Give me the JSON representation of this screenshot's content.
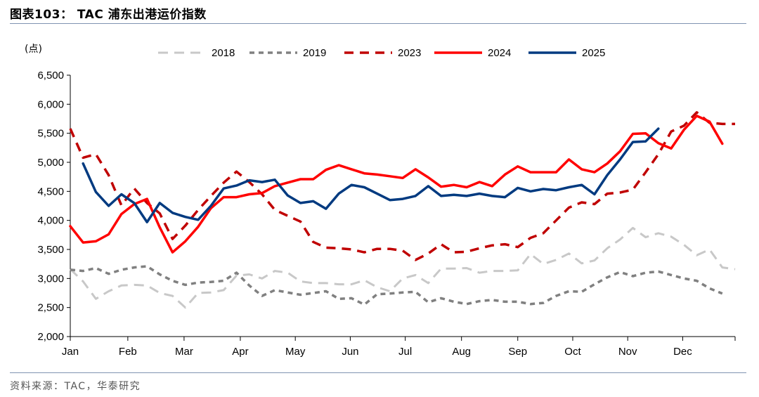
{
  "figure": {
    "title": "图表103： TAC 浦东出港运价指数",
    "source": "资料来源：TAC，华泰研究"
  },
  "chart_data": {
    "type": "line",
    "title": "",
    "ylabel": "(点)",
    "xlabel": "",
    "ylim": [
      2000,
      6500
    ],
    "yticks": [
      2000,
      2500,
      3000,
      3500,
      4000,
      4500,
      5000,
      5500,
      6000,
      6500
    ],
    "ytick_labels": [
      "2,000",
      "2,500",
      "3,000",
      "3,500",
      "4,000",
      "4,500",
      "5,000",
      "5,500",
      "6,000",
      "6,500"
    ],
    "x_unit": "week of year",
    "xlim": [
      1,
      53
    ],
    "months": [
      {
        "label": "Jan",
        "week": 1
      },
      {
        "label": "Feb",
        "week": 5.5
      },
      {
        "label": "Mar",
        "week": 9.9
      },
      {
        "label": "Apr",
        "week": 14.3
      },
      {
        "label": "May",
        "week": 18.6
      },
      {
        "label": "Jun",
        "week": 22.9
      },
      {
        "label": "Jul",
        "week": 27.2
      },
      {
        "label": "Aug",
        "week": 31.6
      },
      {
        "label": "Sep",
        "week": 36.0
      },
      {
        "label": "Oct",
        "week": 40.3
      },
      {
        "label": "Nov",
        "week": 44.6
      },
      {
        "label": "Dec",
        "week": 48.9
      }
    ],
    "legend_position": "top",
    "grid": false,
    "series": [
      {
        "name": "2018",
        "color": "#c8c8c8",
        "dash": "14,9",
        "width": 3,
        "points": [
          [
            1,
            3160
          ],
          [
            2,
            2950
          ],
          [
            3,
            2650
          ],
          [
            4,
            2780
          ],
          [
            5,
            2880
          ],
          [
            6,
            2890
          ],
          [
            7,
            2880
          ],
          [
            8,
            2750
          ],
          [
            9,
            2700
          ],
          [
            10,
            2500
          ],
          [
            11,
            2750
          ],
          [
            12,
            2760
          ],
          [
            13,
            2800
          ],
          [
            14,
            3050
          ],
          [
            15,
            3070
          ],
          [
            16,
            3000
          ],
          [
            17,
            3130
          ],
          [
            18,
            3100
          ],
          [
            19,
            2950
          ],
          [
            20,
            2920
          ],
          [
            21,
            2920
          ],
          [
            22,
            2900
          ],
          [
            23,
            2900
          ],
          [
            24,
            2970
          ],
          [
            25,
            2850
          ],
          [
            26,
            2780
          ],
          [
            27,
            3000
          ],
          [
            28,
            3060
          ],
          [
            29,
            2920
          ],
          [
            30,
            3170
          ],
          [
            31,
            3170
          ],
          [
            32,
            3180
          ],
          [
            33,
            3100
          ],
          [
            34,
            3130
          ],
          [
            35,
            3130
          ],
          [
            36,
            3140
          ],
          [
            37,
            3420
          ],
          [
            38,
            3250
          ],
          [
            39,
            3320
          ],
          [
            40,
            3430
          ],
          [
            41,
            3260
          ],
          [
            42,
            3310
          ],
          [
            43,
            3520
          ],
          [
            44,
            3670
          ],
          [
            45,
            3870
          ],
          [
            46,
            3710
          ],
          [
            47,
            3780
          ],
          [
            48,
            3720
          ],
          [
            49,
            3580
          ],
          [
            50,
            3400
          ],
          [
            51,
            3500
          ],
          [
            52,
            3190
          ],
          [
            53,
            3160
          ]
        ]
      },
      {
        "name": "2019",
        "color": "#808080",
        "dash": "7,6",
        "width": 3.5,
        "points": [
          [
            1,
            3150
          ],
          [
            2,
            3130
          ],
          [
            3,
            3180
          ],
          [
            4,
            3080
          ],
          [
            5,
            3150
          ],
          [
            6,
            3190
          ],
          [
            7,
            3210
          ],
          [
            8,
            3070
          ],
          [
            9,
            2960
          ],
          [
            10,
            2890
          ],
          [
            11,
            2930
          ],
          [
            12,
            2940
          ],
          [
            13,
            2960
          ],
          [
            14,
            3100
          ],
          [
            15,
            2880
          ],
          [
            16,
            2700
          ],
          [
            17,
            2800
          ],
          [
            18,
            2760
          ],
          [
            19,
            2720
          ],
          [
            20,
            2750
          ],
          [
            21,
            2780
          ],
          [
            22,
            2650
          ],
          [
            23,
            2660
          ],
          [
            24,
            2550
          ],
          [
            25,
            2730
          ],
          [
            26,
            2740
          ],
          [
            27,
            2760
          ],
          [
            28,
            2770
          ],
          [
            29,
            2590
          ],
          [
            30,
            2660
          ],
          [
            31,
            2600
          ],
          [
            32,
            2560
          ],
          [
            33,
            2610
          ],
          [
            34,
            2630
          ],
          [
            35,
            2600
          ],
          [
            36,
            2600
          ],
          [
            37,
            2560
          ],
          [
            38,
            2580
          ],
          [
            39,
            2700
          ],
          [
            40,
            2780
          ],
          [
            41,
            2770
          ],
          [
            42,
            2900
          ],
          [
            43,
            3020
          ],
          [
            44,
            3110
          ],
          [
            45,
            3040
          ],
          [
            46,
            3100
          ],
          [
            47,
            3120
          ],
          [
            48,
            3060
          ],
          [
            49,
            3000
          ],
          [
            50,
            2960
          ],
          [
            51,
            2830
          ],
          [
            52,
            2740
          ]
        ]
      },
      {
        "name": "2023",
        "color": "#c00000",
        "dash": "13,9",
        "width": 3.5,
        "points": [
          [
            1,
            5580
          ],
          [
            2,
            5080
          ],
          [
            3,
            5140
          ],
          [
            4,
            4780
          ],
          [
            5,
            4260
          ],
          [
            6,
            4550
          ],
          [
            7,
            4300
          ],
          [
            8,
            4120
          ],
          [
            9,
            3680
          ],
          [
            10,
            3910
          ],
          [
            11,
            4180
          ],
          [
            12,
            4420
          ],
          [
            13,
            4650
          ],
          [
            14,
            4840
          ],
          [
            15,
            4660
          ],
          [
            16,
            4450
          ],
          [
            17,
            4180
          ],
          [
            18,
            4080
          ],
          [
            19,
            3980
          ],
          [
            20,
            3630
          ],
          [
            21,
            3530
          ],
          [
            22,
            3520
          ],
          [
            23,
            3500
          ],
          [
            24,
            3450
          ],
          [
            25,
            3510
          ],
          [
            26,
            3510
          ],
          [
            27,
            3480
          ],
          [
            28,
            3320
          ],
          [
            29,
            3430
          ],
          [
            30,
            3590
          ],
          [
            31,
            3450
          ],
          [
            32,
            3460
          ],
          [
            33,
            3520
          ],
          [
            34,
            3570
          ],
          [
            35,
            3590
          ],
          [
            36,
            3540
          ],
          [
            37,
            3700
          ],
          [
            38,
            3780
          ],
          [
            39,
            4000
          ],
          [
            40,
            4220
          ],
          [
            41,
            4310
          ],
          [
            42,
            4280
          ],
          [
            43,
            4460
          ],
          [
            44,
            4480
          ],
          [
            45,
            4530
          ],
          [
            46,
            4830
          ],
          [
            47,
            5140
          ],
          [
            48,
            5530
          ],
          [
            49,
            5630
          ],
          [
            50,
            5860
          ],
          [
            51,
            5680
          ],
          [
            52,
            5660
          ],
          [
            53,
            5660
          ]
        ]
      },
      {
        "name": "2024",
        "color": "#ff0000",
        "dash": "",
        "width": 3.5,
        "points": [
          [
            1,
            3900
          ],
          [
            2,
            3620
          ],
          [
            3,
            3640
          ],
          [
            4,
            3760
          ],
          [
            5,
            4110
          ],
          [
            6,
            4280
          ],
          [
            7,
            4370
          ],
          [
            8,
            3880
          ],
          [
            9,
            3450
          ],
          [
            10,
            3640
          ],
          [
            11,
            3890
          ],
          [
            12,
            4210
          ],
          [
            13,
            4400
          ],
          [
            14,
            4400
          ],
          [
            15,
            4450
          ],
          [
            16,
            4470
          ],
          [
            17,
            4590
          ],
          [
            18,
            4650
          ],
          [
            19,
            4710
          ],
          [
            20,
            4710
          ],
          [
            21,
            4870
          ],
          [
            22,
            4950
          ],
          [
            23,
            4880
          ],
          [
            24,
            4810
          ],
          [
            25,
            4790
          ],
          [
            26,
            4760
          ],
          [
            27,
            4730
          ],
          [
            28,
            4880
          ],
          [
            29,
            4740
          ],
          [
            30,
            4580
          ],
          [
            31,
            4610
          ],
          [
            32,
            4570
          ],
          [
            33,
            4660
          ],
          [
            34,
            4590
          ],
          [
            35,
            4790
          ],
          [
            36,
            4930
          ],
          [
            37,
            4830
          ],
          [
            38,
            4830
          ],
          [
            39,
            4830
          ],
          [
            40,
            5050
          ],
          [
            41,
            4880
          ],
          [
            42,
            4830
          ],
          [
            43,
            4980
          ],
          [
            44,
            5190
          ],
          [
            45,
            5490
          ],
          [
            46,
            5500
          ],
          [
            47,
            5330
          ],
          [
            48,
            5240
          ],
          [
            49,
            5560
          ],
          [
            50,
            5800
          ],
          [
            51,
            5700
          ],
          [
            52,
            5320
          ]
        ]
      },
      {
        "name": "2025",
        "color": "#003a80",
        "dash": "",
        "width": 3.5,
        "points": [
          [
            2,
            4980
          ],
          [
            3,
            4490
          ],
          [
            4,
            4250
          ],
          [
            5,
            4450
          ],
          [
            6,
            4300
          ],
          [
            7,
            3970
          ],
          [
            8,
            4300
          ],
          [
            9,
            4130
          ],
          [
            10,
            4060
          ],
          [
            11,
            4010
          ],
          [
            12,
            4250
          ],
          [
            13,
            4550
          ],
          [
            14,
            4600
          ],
          [
            15,
            4690
          ],
          [
            16,
            4660
          ],
          [
            17,
            4700
          ],
          [
            18,
            4430
          ],
          [
            19,
            4300
          ],
          [
            20,
            4330
          ],
          [
            21,
            4200
          ],
          [
            22,
            4460
          ],
          [
            23,
            4610
          ],
          [
            24,
            4570
          ],
          [
            25,
            4460
          ],
          [
            26,
            4350
          ],
          [
            27,
            4370
          ],
          [
            28,
            4420
          ],
          [
            29,
            4590
          ],
          [
            30,
            4420
          ],
          [
            31,
            4440
          ],
          [
            32,
            4420
          ],
          [
            33,
            4460
          ],
          [
            34,
            4420
          ],
          [
            35,
            4400
          ],
          [
            36,
            4560
          ],
          [
            37,
            4500
          ],
          [
            38,
            4540
          ],
          [
            39,
            4520
          ],
          [
            40,
            4570
          ],
          [
            41,
            4610
          ],
          [
            42,
            4450
          ],
          [
            43,
            4780
          ],
          [
            44,
            5050
          ],
          [
            45,
            5350
          ],
          [
            46,
            5360
          ],
          [
            47,
            5580
          ]
        ]
      }
    ]
  }
}
